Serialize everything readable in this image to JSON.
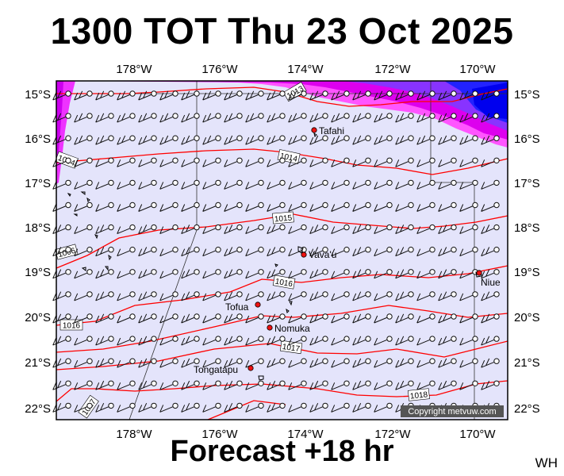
{
  "title": "1300 TOT Thu 23 Oct 2025",
  "footer": "Forecast +18 hr",
  "initials": "WH",
  "copyright": "Copyright metvuw.com",
  "map": {
    "lon_labels": [
      "178°W",
      "176°W",
      "174°W",
      "172°W",
      "170°W"
    ],
    "lat_labels": [
      "15°S",
      "16°S",
      "17°S",
      "18°S",
      "19°S",
      "20°S",
      "21°S",
      "22°S"
    ],
    "isobar_labels": [
      "1013",
      "1014",
      "1015",
      "1016",
      "1017",
      "1018",
      "1004",
      "1006",
      "1016",
      "1017"
    ],
    "places": [
      "Tafahi",
      "Vava'u",
      "Niue",
      "Tofua",
      "Nomuka",
      "Tongatapu"
    ]
  },
  "colors": {
    "ocean": "#e4e4fb",
    "isobar": "#ff0000",
    "high_wind": "#ff00ff",
    "very_high_wind": "#0000ff"
  }
}
